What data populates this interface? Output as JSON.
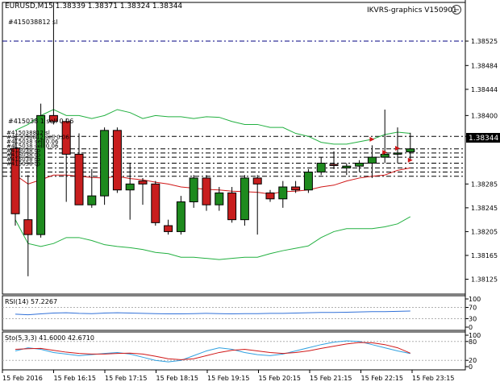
{
  "header": {
    "ohlc_line": "EURUSD,M15  1.38339 1.38371 1.38324 1.38344",
    "indicator_label": "IKVRS-graphics V150901"
  },
  "current_price": {
    "label": "1.38344",
    "value": 1.38344,
    "color": "#000000"
  },
  "colors": {
    "bull_body": "#1e8a1e",
    "bear_body": "#c81e1e",
    "band": "#22b040",
    "middle": "#d01818",
    "rsi_line": "#3070d8",
    "stoch_main": "#30a0e0",
    "stoch_signal": "#d01818",
    "order_line": "#000080",
    "grid": "#b0b0b0"
  },
  "order_lines": {
    "top_label": "#415038812 sl",
    "mid_label": "#415038 1 sell 0.06",
    "stacked_labels": [
      "#415038812 sl",
      "#415038812 sell 0.06",
      "#415038 sell 0.06",
      "#415038 sell 0.06",
      "#415038 tp",
      "#415038 tp",
      "#415038 tp",
      "#415038 tp"
    ]
  },
  "chart_data": [
    {
      "type": "candlestick",
      "symbol": "EURUSD",
      "timeframe": "M15",
      "ylim": [
        1.381,
        1.3859
      ],
      "y_ticks": [
        "1.38525",
        "1.38484",
        "1.38444",
        "1.38400",
        "1.38365",
        "1.38285",
        "1.38245",
        "1.38205",
        "1.38165",
        "1.38125"
      ],
      "x_ticks": [
        "15 Feb 2016",
        "15 Feb 16:15",
        "15 Feb 17:15",
        "15 Feb 18:15",
        "15 Feb 19:15",
        "15 Feb 20:15",
        "15 Feb 21:15",
        "15 Feb 22:15",
        "15 Feb 23:15"
      ],
      "candles": [
        {
          "o": 1.38345,
          "h": 1.38365,
          "l": 1.38215,
          "c": 1.38235
        },
        {
          "o": 1.38225,
          "h": 1.383,
          "l": 1.3813,
          "c": 1.382
        },
        {
          "o": 1.382,
          "h": 1.3842,
          "l": 1.38195,
          "c": 1.384
        },
        {
          "o": 1.384,
          "h": 1.3859,
          "l": 1.38385,
          "c": 1.3839
        },
        {
          "o": 1.3839,
          "h": 1.38395,
          "l": 1.38255,
          "c": 1.38335
        },
        {
          "o": 1.38335,
          "h": 1.3837,
          "l": 1.3825,
          "c": 1.3825
        },
        {
          "o": 1.3825,
          "h": 1.3831,
          "l": 1.38245,
          "c": 1.38265
        },
        {
          "o": 1.38265,
          "h": 1.3838,
          "l": 1.3825,
          "c": 1.38375
        },
        {
          "o": 1.38375,
          "h": 1.3838,
          "l": 1.3827,
          "c": 1.38275
        },
        {
          "o": 1.38275,
          "h": 1.3832,
          "l": 1.38225,
          "c": 1.38285
        },
        {
          "o": 1.3829,
          "h": 1.38295,
          "l": 1.3825,
          "c": 1.38285
        },
        {
          "o": 1.38285,
          "h": 1.3829,
          "l": 1.38215,
          "c": 1.3822
        },
        {
          "o": 1.38215,
          "h": 1.38225,
          "l": 1.382,
          "c": 1.38205
        },
        {
          "o": 1.38205,
          "h": 1.38265,
          "l": 1.382,
          "c": 1.38255
        },
        {
          "o": 1.38255,
          "h": 1.383,
          "l": 1.38245,
          "c": 1.38295
        },
        {
          "o": 1.38295,
          "h": 1.383,
          "l": 1.3824,
          "c": 1.3825
        },
        {
          "o": 1.3825,
          "h": 1.3828,
          "l": 1.3824,
          "c": 1.3827
        },
        {
          "o": 1.3827,
          "h": 1.3828,
          "l": 1.3822,
          "c": 1.38225
        },
        {
          "o": 1.38225,
          "h": 1.383,
          "l": 1.38215,
          "c": 1.38295
        },
        {
          "o": 1.38295,
          "h": 1.383,
          "l": 1.382,
          "c": 1.38285
        },
        {
          "o": 1.3827,
          "h": 1.38275,
          "l": 1.38255,
          "c": 1.3826
        },
        {
          "o": 1.3826,
          "h": 1.3829,
          "l": 1.38245,
          "c": 1.3828
        },
        {
          "o": 1.3828,
          "h": 1.3829,
          "l": 1.3827,
          "c": 1.38275
        },
        {
          "o": 1.38275,
          "h": 1.3831,
          "l": 1.3827,
          "c": 1.38305
        },
        {
          "o": 1.38305,
          "h": 1.3833,
          "l": 1.383,
          "c": 1.3832
        },
        {
          "o": 1.38318,
          "h": 1.3834,
          "l": 1.3831,
          "c": 1.38316
        },
        {
          "o": 1.38312,
          "h": 1.3832,
          "l": 1.383,
          "c": 1.38315
        },
        {
          "o": 1.38315,
          "h": 1.38325,
          "l": 1.38305,
          "c": 1.3832
        },
        {
          "o": 1.3832,
          "h": 1.3835,
          "l": 1.38295,
          "c": 1.3833
        },
        {
          "o": 1.3833,
          "h": 1.3841,
          "l": 1.3832,
          "c": 1.38335
        },
        {
          "o": 1.38335,
          "h": 1.3838,
          "l": 1.3832,
          "c": 1.38337
        },
        {
          "o": 1.38339,
          "h": 1.38371,
          "l": 1.38324,
          "c": 1.38344
        }
      ],
      "bands_upper": [
        1.38375,
        1.38385,
        1.384,
        1.3841,
        1.384,
        1.384,
        1.38395,
        1.384,
        1.3841,
        1.38405,
        1.38395,
        1.384,
        1.38398,
        1.38398,
        1.38395,
        1.38398,
        1.38397,
        1.3839,
        1.38385,
        1.38385,
        1.3838,
        1.3838,
        1.3837,
        1.38365,
        1.38355,
        1.38352,
        1.38352,
        1.38356,
        1.3836,
        1.38368,
        1.38372,
        1.3837
      ],
      "bands_middle": [
        1.383,
        1.38285,
        1.38292,
        1.383,
        1.383,
        1.38298,
        1.38296,
        1.38295,
        1.38298,
        1.38294,
        1.38292,
        1.38288,
        1.38285,
        1.3828,
        1.38278,
        1.38276,
        1.38275,
        1.38273,
        1.38272,
        1.38271,
        1.38268,
        1.38272,
        1.38273,
        1.38275,
        1.3828,
        1.38283,
        1.3829,
        1.38295,
        1.38298,
        1.383,
        1.38308,
        1.38312
      ],
      "bands_lower": [
        1.38225,
        1.38185,
        1.3818,
        1.38185,
        1.38195,
        1.38195,
        1.3819,
        1.38183,
        1.3818,
        1.38178,
        1.38175,
        1.3817,
        1.38168,
        1.38162,
        1.38162,
        1.3816,
        1.38158,
        1.3816,
        1.38162,
        1.38162,
        1.38168,
        1.38173,
        1.38177,
        1.38181,
        1.38195,
        1.38205,
        1.3821,
        1.3821,
        1.3821,
        1.38213,
        1.38218,
        1.3823
      ],
      "order_levels": [
        1.38525,
        1.38344,
        1.38337,
        1.3833,
        1.3832,
        1.38312,
        1.38305,
        1.38298
      ]
    },
    {
      "type": "line",
      "title": "RSI(14) 57.2267",
      "ylim": [
        0,
        100
      ],
      "y_ticks": [
        "100",
        "70",
        "30",
        "0"
      ],
      "series": [
        {
          "name": "RSI(14)",
          "values": [
            46,
            44,
            47,
            50,
            51,
            49,
            48,
            50,
            51,
            50,
            49,
            48,
            47,
            47,
            48,
            49,
            48,
            47,
            48,
            48,
            49,
            49,
            50,
            51,
            52,
            52,
            53,
            54,
            55,
            55,
            56,
            57.2
          ]
        }
      ]
    },
    {
      "type": "line",
      "title": "Sto(5,3,3) 41.6000 42.6710",
      "ylim": [
        0,
        100
      ],
      "y_ticks": [
        "100",
        "80",
        "20",
        "0"
      ],
      "series": [
        {
          "name": "main",
          "values": [
            50,
            60,
            55,
            45,
            40,
            35,
            38,
            42,
            45,
            40,
            30,
            20,
            15,
            20,
            35,
            50,
            60,
            55,
            45,
            38,
            35,
            40,
            50,
            60,
            70,
            78,
            82,
            80,
            70,
            60,
            50,
            41.6
          ]
        },
        {
          "name": "signal",
          "values": [
            55,
            57,
            58,
            52,
            46,
            42,
            40,
            40,
            42,
            43,
            40,
            33,
            25,
            22,
            25,
            35,
            45,
            52,
            55,
            50,
            45,
            42,
            45,
            50,
            58,
            65,
            72,
            77,
            76,
            70,
            60,
            42.7
          ]
        }
      ]
    }
  ]
}
